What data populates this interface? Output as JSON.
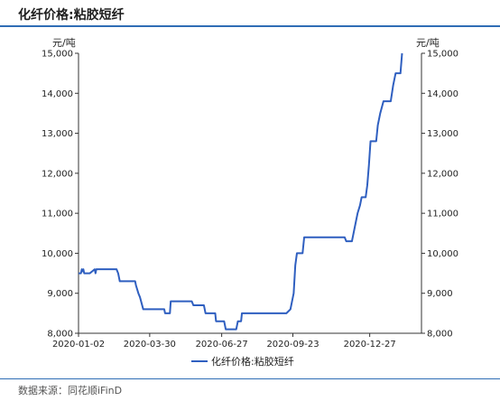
{
  "header": {
    "title": "化纤价格:粘胶短纤"
  },
  "footer": {
    "source": "数据来源：同花顺iFinD"
  },
  "chart_data": {
    "type": "line",
    "unit_left": "元/吨",
    "unit_right": "元/吨",
    "ylim": [
      8000,
      15000
    ],
    "y_ticks": [
      "8,000",
      "9,000",
      "10,000",
      "11,000",
      "12,000",
      "13,000",
      "14,000",
      "15,000"
    ],
    "y_tick_values": [
      8000,
      9000,
      10000,
      11000,
      12000,
      13000,
      14000,
      15000
    ],
    "x_ticks": [
      "2020-01-02",
      "2020-03-30",
      "2020-06-27",
      "2020-09-23",
      "2020-12-27"
    ],
    "x_tick_values": [
      "2020-01-02",
      "2020-03-30",
      "2020-06-27",
      "2020-09-23",
      "2020-12-27"
    ],
    "xlim": [
      "2020-01-02",
      "2021-03-01"
    ],
    "grid": false,
    "legend_position": "bottom",
    "line_color": "#2f5fc0",
    "series": [
      {
        "name": "化纤价格:粘胶短纤",
        "points": [
          [
            "2020-01-02",
            9500
          ],
          [
            "2020-01-05",
            9500
          ],
          [
            "2020-01-06",
            9600
          ],
          [
            "2020-01-07",
            9550
          ],
          [
            "2020-01-08",
            9600
          ],
          [
            "2020-01-09",
            9500
          ],
          [
            "2020-01-16",
            9500
          ],
          [
            "2020-01-19",
            9550
          ],
          [
            "2020-01-22",
            9600
          ],
          [
            "2020-01-23",
            9500
          ],
          [
            "2020-01-24",
            9600
          ],
          [
            "2020-02-18",
            9600
          ],
          [
            "2020-02-20",
            9500
          ],
          [
            "2020-02-22",
            9300
          ],
          [
            "2020-03-12",
            9300
          ],
          [
            "2020-03-13",
            9200
          ],
          [
            "2020-03-16",
            9000
          ],
          [
            "2020-03-18",
            8900
          ],
          [
            "2020-03-22",
            8600
          ],
          [
            "2020-04-17",
            8600
          ],
          [
            "2020-04-18",
            8500
          ],
          [
            "2020-04-24",
            8500
          ],
          [
            "2020-04-25",
            8800
          ],
          [
            "2020-05-21",
            8800
          ],
          [
            "2020-05-23",
            8700
          ],
          [
            "2020-06-05",
            8700
          ],
          [
            "2020-06-07",
            8500
          ],
          [
            "2020-06-19",
            8500
          ],
          [
            "2020-06-20",
            8300
          ],
          [
            "2020-06-30",
            8300
          ],
          [
            "2020-07-02",
            8100
          ],
          [
            "2020-07-15",
            8100
          ],
          [
            "2020-07-17",
            8300
          ],
          [
            "2020-07-21",
            8300
          ],
          [
            "2020-07-22",
            8500
          ],
          [
            "2020-09-15",
            8500
          ],
          [
            "2020-09-20",
            8600
          ],
          [
            "2020-09-22",
            8800
          ],
          [
            "2020-09-24",
            9000
          ],
          [
            "2020-09-26",
            9700
          ],
          [
            "2020-09-28",
            10000
          ],
          [
            "2020-10-05",
            10000
          ],
          [
            "2020-10-07",
            10400
          ],
          [
            "2020-11-26",
            10400
          ],
          [
            "2020-11-28",
            10300
          ],
          [
            "2020-12-05",
            10300
          ],
          [
            "2020-12-07",
            10500
          ],
          [
            "2020-12-10",
            10800
          ],
          [
            "2020-12-12",
            11000
          ],
          [
            "2020-12-15",
            11200
          ],
          [
            "2020-12-17",
            11400
          ],
          [
            "2020-12-22",
            11400
          ],
          [
            "2020-12-24",
            11700
          ],
          [
            "2020-12-26",
            12200
          ],
          [
            "2020-12-28",
            12800
          ],
          [
            "2021-01-04",
            12800
          ],
          [
            "2021-01-06",
            13200
          ],
          [
            "2021-01-09",
            13500
          ],
          [
            "2021-01-13",
            13800
          ],
          [
            "2021-01-22",
            13800
          ],
          [
            "2021-01-25",
            14200
          ],
          [
            "2021-01-28",
            14500
          ],
          [
            "2021-02-03",
            14500
          ],
          [
            "2021-02-05",
            15000
          ]
        ]
      }
    ]
  }
}
